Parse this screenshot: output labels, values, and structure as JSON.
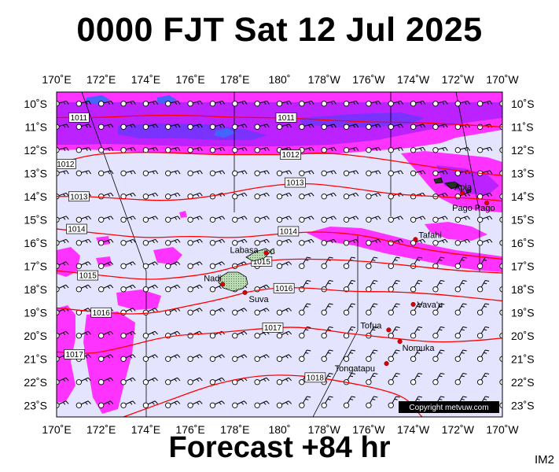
{
  "title": "0000 FJT Sat 12 Jul 2025",
  "footer": "Forecast +84 hr",
  "corner_tag": "IM2",
  "copyright": "Copyright metvuw.com",
  "map": {
    "lon_min": 170,
    "lon_max": 190,
    "lat_min": -23.5,
    "lat_max": -9.5,
    "lon_labels": [
      "170˚E",
      "172˚E",
      "174˚E",
      "176˚E",
      "178˚E",
      "180˚",
      "178˚W",
      "176˚W",
      "174˚W",
      "172˚W",
      "170˚W"
    ],
    "lat_labels": [
      "10˚S",
      "11˚S",
      "12˚S",
      "13˚S",
      "14˚S",
      "15˚S",
      "16˚S",
      "17˚S",
      "18˚S",
      "19˚S",
      "20˚S",
      "21˚S",
      "22˚S",
      "23˚S"
    ]
  },
  "isobars": [
    {
      "label": "1011",
      "lon": [
        170,
        172,
        174,
        176,
        178,
        180,
        182,
        184,
        186,
        188,
        190
      ],
      "lat": [
        -10.6,
        -10.6,
        -10.5,
        -10.5,
        -10.6,
        -10.6,
        -10.7,
        -10.8,
        -10.8,
        -10.9,
        -11.0
      ],
      "labels_at": [
        [
          171,
          -10.6
        ],
        [
          180.3,
          -10.6
        ]
      ]
    },
    {
      "label": "1012",
      "lon": [
        170,
        171.5,
        173,
        175,
        177,
        179,
        180.5,
        182,
        184,
        186,
        188,
        190
      ],
      "lat": [
        -12.6,
        -12.2,
        -12.1,
        -12.1,
        -12.2,
        -12.2,
        -12.2,
        -12.1,
        -12.3,
        -12.6,
        -12.9,
        -13.1
      ],
      "labels_at": [
        [
          170.4,
          -12.6
        ],
        [
          180.5,
          -12.2
        ]
      ]
    },
    {
      "label": "1013",
      "lon": [
        170,
        171.5,
        173,
        175,
        177,
        179,
        181,
        183,
        185,
        187,
        189,
        190
      ],
      "lat": [
        -14.0,
        -14.0,
        -14.1,
        -14.2,
        -14.0,
        -13.6,
        -13.4,
        -13.6,
        -13.9,
        -14.0,
        -14.1,
        -14.2
      ],
      "labels_at": [
        [
          171.0,
          -14.0
        ],
        [
          180.7,
          -13.4
        ]
      ]
    },
    {
      "label": "1014",
      "lon": [
        170,
        172,
        174,
        176,
        178,
        180,
        182,
        184,
        186,
        188,
        190
      ],
      "lat": [
        -15.4,
        -15.6,
        -15.8,
        -15.7,
        -15.8,
        -15.6,
        -15.5,
        -15.7,
        -16.2,
        -16.5,
        -16.7
      ],
      "labels_at": [
        [
          170.9,
          -15.4
        ],
        [
          180.4,
          -15.5
        ]
      ]
    },
    {
      "label": "1015",
      "lon": [
        170,
        172,
        174,
        175.5,
        177,
        178.5,
        180,
        182,
        184,
        186,
        188,
        190
      ],
      "lat": [
        -17.2,
        -17.4,
        -17.6,
        -17.5,
        -17.3,
        -16.9,
        -16.7,
        -16.7,
        -16.8,
        -17.0,
        -17.2,
        -17.3
      ],
      "labels_at": [
        [
          171.4,
          -17.4
        ],
        [
          179.2,
          -16.8
        ]
      ]
    },
    {
      "label": "1016",
      "lon": [
        170,
        172,
        174,
        176,
        177.5,
        179,
        181,
        183,
        185,
        187,
        189,
        190
      ],
      "lat": [
        -18.8,
        -19.0,
        -19.1,
        -18.7,
        -18.4,
        -18.0,
        -17.9,
        -18.1,
        -18.1,
        -18.2,
        -18.4,
        -18.5
      ],
      "labels_at": [
        [
          172.0,
          -19.0
        ],
        [
          180.2,
          -17.95
        ]
      ]
    },
    {
      "label": "1017",
      "lon": [
        170,
        171.5,
        173,
        175,
        177,
        179,
        181,
        183,
        185,
        187,
        189,
        190
      ],
      "lat": [
        -20.7,
        -20.8,
        -20.5,
        -20.0,
        -19.9,
        -19.7,
        -19.6,
        -19.9,
        -20.1,
        -20.3,
        -20.2,
        -20.1
      ],
      "labels_at": [
        [
          170.8,
          -20.8
        ],
        [
          179.7,
          -19.65
        ]
      ]
    },
    {
      "label": "1018",
      "lon": [
        173,
        175,
        177,
        179,
        181,
        183,
        184.5,
        185.5,
        186,
        186.2,
        186.4
      ],
      "lat": [
        -23.5,
        -22.8,
        -22.1,
        -21.7,
        -21.7,
        -22.0,
        -22.3,
        -22.6,
        -23.0,
        -23.3,
        -23.5
      ],
      "labels_at": [
        [
          181.6,
          -21.8
        ]
      ]
    }
  ],
  "places": [
    {
      "name": "Apia",
      "lon": 188.2,
      "lat": -13.85
    },
    {
      "name": "Pago Pago",
      "lon": 189.3,
      "lat": -14.28
    },
    {
      "name": "Tafahi",
      "lon": 186.1,
      "lat": -15.85
    },
    {
      "name": "Labasa",
      "lon": 179.4,
      "lat": -16.43
    },
    {
      "name": "Nadi",
      "lon": 177.45,
      "lat": -17.78
    },
    {
      "name": "Suva",
      "lon": 178.45,
      "lat": -18.14
    },
    {
      "name": "Vava'u",
      "lon": 186.0,
      "lat": -18.65
    },
    {
      "name": "Tofua",
      "lon": 184.9,
      "lat": -19.75
    },
    {
      "name": "Nomuka",
      "lon": 185.4,
      "lat": -20.25
    },
    {
      "name": "Tongatapu",
      "lon": 184.8,
      "lat": -21.2
    }
  ],
  "colors": {
    "ocean": "#e4e4ff",
    "rain_light": "#ff33ff",
    "rain_medium": "#bb22ff",
    "rain_heavy": "#7a33ff",
    "rain_extreme": "#4466ff",
    "land": "#b8ddb0",
    "isobar": "#ff0000",
    "city": "#dd0000"
  }
}
